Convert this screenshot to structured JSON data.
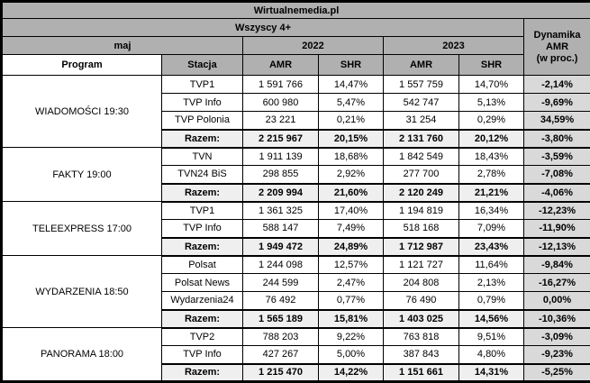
{
  "colors": {
    "header_bg": "#b0b0b0",
    "dynamics_cell_bg": "#d9d9d9",
    "total_row_bg": "#efefef",
    "row_bg": "#ffffff",
    "border": "#000000",
    "text": "#000000"
  },
  "chart_data": {
    "type": "table",
    "title": "Wirtualnemedia.pl",
    "header": {
      "population": "Wszyscy 4+",
      "month": "maj",
      "year_2022": "2022",
      "year_2023": "2023",
      "program_col": "Program",
      "station_col": "Stacja",
      "amr_col": "AMR",
      "shr_col": "SHR",
      "dynamics_line1": "Dynamika",
      "dynamics_line2": "AMR",
      "dynamics_line3": "(w proc.)"
    },
    "columns": [
      "Program",
      "Stacja",
      "AMR 2022",
      "SHR 2022",
      "AMR 2023",
      "SHR 2023",
      "Dynamika AMR (w proc.)"
    ],
    "groups": [
      {
        "program": "WIADOMOŚCI 19:30",
        "rows": [
          {
            "station": "TVP1",
            "amr2022": "1 591 766",
            "shr2022": "14,47%",
            "amr2023": "1 557 759",
            "shr2023": "14,70%",
            "dyn": "-2,14%"
          },
          {
            "station": "TVP Info",
            "amr2022": "600 980",
            "shr2022": "5,47%",
            "amr2023": "542 747",
            "shr2023": "5,13%",
            "dyn": "-9,69%"
          },
          {
            "station": "TVP Polonia",
            "amr2022": "23 221",
            "shr2022": "0,21%",
            "amr2023": "31 254",
            "shr2023": "0,29%",
            "dyn": "34,59%"
          }
        ],
        "total": {
          "station": "Razem:",
          "amr2022": "2 215 967",
          "shr2022": "20,15%",
          "amr2023": "2 131 760",
          "shr2023": "20,12%",
          "dyn": "-3,80%"
        }
      },
      {
        "program": "FAKTY 19:00",
        "rows": [
          {
            "station": "TVN",
            "amr2022": "1 911 139",
            "shr2022": "18,68%",
            "amr2023": "1 842 549",
            "shr2023": "18,43%",
            "dyn": "-3,59%"
          },
          {
            "station": "TVN24 BiS",
            "amr2022": "298 855",
            "shr2022": "2,92%",
            "amr2023": "277 700",
            "shr2023": "2,78%",
            "dyn": "-7,08%"
          }
        ],
        "total": {
          "station": "Razem:",
          "amr2022": "2 209 994",
          "shr2022": "21,60%",
          "amr2023": "2 120 249",
          "shr2023": "21,21%",
          "dyn": "-4,06%"
        }
      },
      {
        "program": "TELEEXPRESS 17:00",
        "rows": [
          {
            "station": "TVP1",
            "amr2022": "1 361 325",
            "shr2022": "17,40%",
            "amr2023": "1 194 819",
            "shr2023": "16,34%",
            "dyn": "-12,23%"
          },
          {
            "station": "TVP Info",
            "amr2022": "588 147",
            "shr2022": "7,49%",
            "amr2023": "518 168",
            "shr2023": "7,09%",
            "dyn": "-11,90%"
          }
        ],
        "total": {
          "station": "Razem:",
          "amr2022": "1 949 472",
          "shr2022": "24,89%",
          "amr2023": "1 712 987",
          "shr2023": "23,43%",
          "dyn": "-12,13%"
        }
      },
      {
        "program": "WYDARZENIA 18:50",
        "rows": [
          {
            "station": "Polsat",
            "amr2022": "1 244 098",
            "shr2022": "12,57%",
            "amr2023": "1 121 727",
            "shr2023": "11,64%",
            "dyn": "-9,84%"
          },
          {
            "station": "Polsat News",
            "amr2022": "244 599",
            "shr2022": "2,47%",
            "amr2023": "204 808",
            "shr2023": "2,13%",
            "dyn": "-16,27%"
          },
          {
            "station": "Wydarzenia24",
            "amr2022": "76 492",
            "shr2022": "0,77%",
            "amr2023": "76 490",
            "shr2023": "0,79%",
            "dyn": "0,00%"
          }
        ],
        "total": {
          "station": "Razem:",
          "amr2022": "1 565 189",
          "shr2022": "15,81%",
          "amr2023": "1 403 025",
          "shr2023": "14,56%",
          "dyn": "-10,36%"
        }
      },
      {
        "program": "PANORAMA 18:00",
        "rows": [
          {
            "station": "TVP2",
            "amr2022": "788 203",
            "shr2022": "9,22%",
            "amr2023": "763 818",
            "shr2023": "9,51%",
            "dyn": "-3,09%"
          },
          {
            "station": "TVP Info",
            "amr2022": "427 267",
            "shr2022": "5,00%",
            "amr2023": "387 843",
            "shr2023": "4,80%",
            "dyn": "-9,23%"
          }
        ],
        "total": {
          "station": "Razem:",
          "amr2022": "1 215 470",
          "shr2022": "14,22%",
          "amr2023": "1 151 661",
          "shr2023": "14,31%",
          "dyn": "-5,25%"
        }
      }
    ]
  }
}
